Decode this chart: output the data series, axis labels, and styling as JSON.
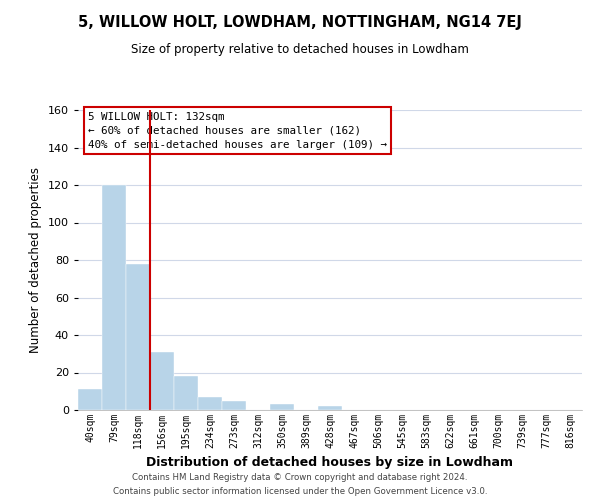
{
  "title": "5, WILLOW HOLT, LOWDHAM, NOTTINGHAM, NG14 7EJ",
  "subtitle": "Size of property relative to detached houses in Lowdham",
  "xlabel": "Distribution of detached houses by size in Lowdham",
  "ylabel": "Number of detached properties",
  "bar_labels": [
    "40sqm",
    "79sqm",
    "118sqm",
    "156sqm",
    "195sqm",
    "234sqm",
    "273sqm",
    "312sqm",
    "350sqm",
    "389sqm",
    "428sqm",
    "467sqm",
    "506sqm",
    "545sqm",
    "583sqm",
    "622sqm",
    "661sqm",
    "700sqm",
    "739sqm",
    "777sqm",
    "816sqm"
  ],
  "bar_values": [
    11,
    120,
    78,
    31,
    18,
    7,
    5,
    0,
    3,
    0,
    2,
    0,
    0,
    0,
    0,
    0,
    0,
    0,
    0,
    0,
    0
  ],
  "bar_color": "#b8d4e8",
  "bar_edge_color": "#b8d4e8",
  "vline_color": "#cc0000",
  "ylim": [
    0,
    160
  ],
  "yticks": [
    0,
    20,
    40,
    60,
    80,
    100,
    120,
    140,
    160
  ],
  "annotation_title": "5 WILLOW HOLT: 132sqm",
  "annotation_line1": "← 60% of detached houses are smaller (162)",
  "annotation_line2": "40% of semi-detached houses are larger (109) →",
  "footer_line1": "Contains HM Land Registry data © Crown copyright and database right 2024.",
  "footer_line2": "Contains public sector information licensed under the Open Government Licence v3.0.",
  "background_color": "#ffffff",
  "grid_color": "#d0d8e8"
}
